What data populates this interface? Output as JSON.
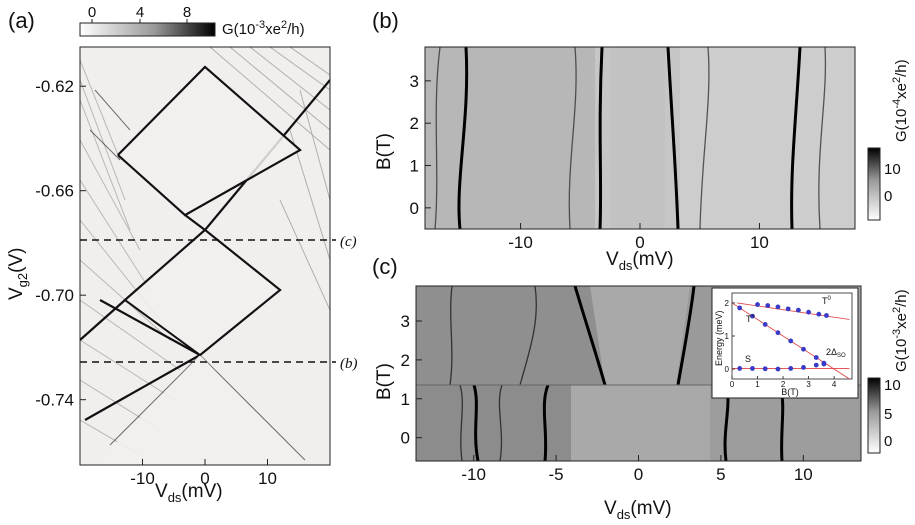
{
  "figure": {
    "panels": {
      "a": {
        "label": "(a)",
        "colorbar": {
          "ticks": [
            "0",
            "4",
            "8"
          ],
          "unit_pre": "G(10",
          "unit_exp": "-3",
          "unit_post": "xe",
          "unit_exp2": "2",
          "unit_end": "/h)"
        },
        "cuts": [
          "(c)",
          "(b)"
        ]
      },
      "b": {
        "label": "(b)",
        "colorbar": {
          "ticks": [
            "10",
            "0"
          ],
          "unit_pre": "G(10",
          "unit_exp": "-4",
          "unit_post": "xe",
          "unit_exp2": "2",
          "unit_end": "/h)"
        }
      },
      "c": {
        "label": "(c)",
        "colorbar": {
          "ticks": [
            "10",
            "5",
            "0"
          ],
          "unit_pre": "G(10",
          "unit_exp": "-3",
          "unit_post": "xe",
          "unit_exp2": "2",
          "unit_end": "/h)"
        },
        "inset": {
          "ylabel": "Energy (meV)",
          "xlabel": "B(T)",
          "yticks": [
            "0",
            "1",
            "2"
          ],
          "xticks": [
            "0",
            "1",
            "2",
            "3",
            "4"
          ],
          "labels": {
            "t0": "T",
            "t0_sup": "0",
            "tplus": "T",
            "tplus_sup": "+",
            "s": "S",
            "delta": "2Δ",
            "delta_sub": "SO"
          }
        }
      }
    }
  },
  "chart_data": [
    {
      "type": "heatmap",
      "panel": "(a)",
      "xlabel_main": "V",
      "xlabel_sub": "ds",
      "xlabel_unit": "(mV)",
      "ylabel_main": "V",
      "ylabel_sub": "g2",
      "ylabel_unit": "(V)",
      "xticks": [
        "-10",
        "0",
        "10"
      ],
      "yticks": [
        "-0.62",
        "-0.66",
        "-0.70",
        "-0.74"
      ],
      "xlim": [
        -20,
        20
      ],
      "ylim": [
        -0.765,
        -0.605
      ]
    },
    {
      "type": "heatmap",
      "panel": "(b)",
      "xlabel_main": "V",
      "xlabel_sub": "ds",
      "xlabel_unit": "(mV)",
      "ylabel": "B(T)",
      "xticks": [
        "-10",
        "0",
        "10"
      ],
      "yticks": [
        "3",
        "2",
        "1",
        "0"
      ],
      "xlim": [
        -18,
        18
      ],
      "ylim": [
        -0.5,
        3.8
      ]
    },
    {
      "type": "heatmap",
      "panel": "(c)",
      "xlabel_main": "V",
      "xlabel_sub": "ds",
      "xlabel_unit": "(mV)",
      "ylabel": "B(T)",
      "xticks": [
        "-10",
        "-5",
        "0",
        "5",
        "10"
      ],
      "yticks": [
        "3",
        "2",
        "1",
        "0"
      ],
      "xlim": [
        -13.5,
        13.5
      ],
      "ylim": [
        -0.6,
        3.9
      ]
    },
    {
      "type": "scatter",
      "panel": "(c) inset",
      "xlabel": "B(T)",
      "ylabel": "Energy (meV)",
      "xlim": [
        0,
        4.7
      ],
      "ylim": [
        -0.3,
        2.3
      ],
      "series": [
        {
          "name": "T0",
          "x": [
            1.0,
            1.4,
            1.8,
            2.2,
            2.6,
            3.0,
            3.4,
            3.7
          ],
          "y": [
            1.95,
            1.92,
            1.88,
            1.82,
            1.78,
            1.72,
            1.66,
            1.62
          ]
        },
        {
          "name": "T+",
          "x": [
            0.3,
            0.8,
            1.3,
            1.8,
            2.3,
            2.8,
            3.3,
            3.6
          ],
          "y": [
            1.85,
            1.6,
            1.35,
            1.1,
            0.85,
            0.6,
            0.35,
            0.15
          ]
        },
        {
          "name": "S",
          "x": [
            0.3,
            0.8,
            1.3,
            1.8,
            2.3,
            2.8,
            3.3,
            3.6
          ],
          "y": [
            0.02,
            0.02,
            0.01,
            0.0,
            0.02,
            0.05,
            0.12,
            0.18
          ]
        }
      ]
    }
  ]
}
